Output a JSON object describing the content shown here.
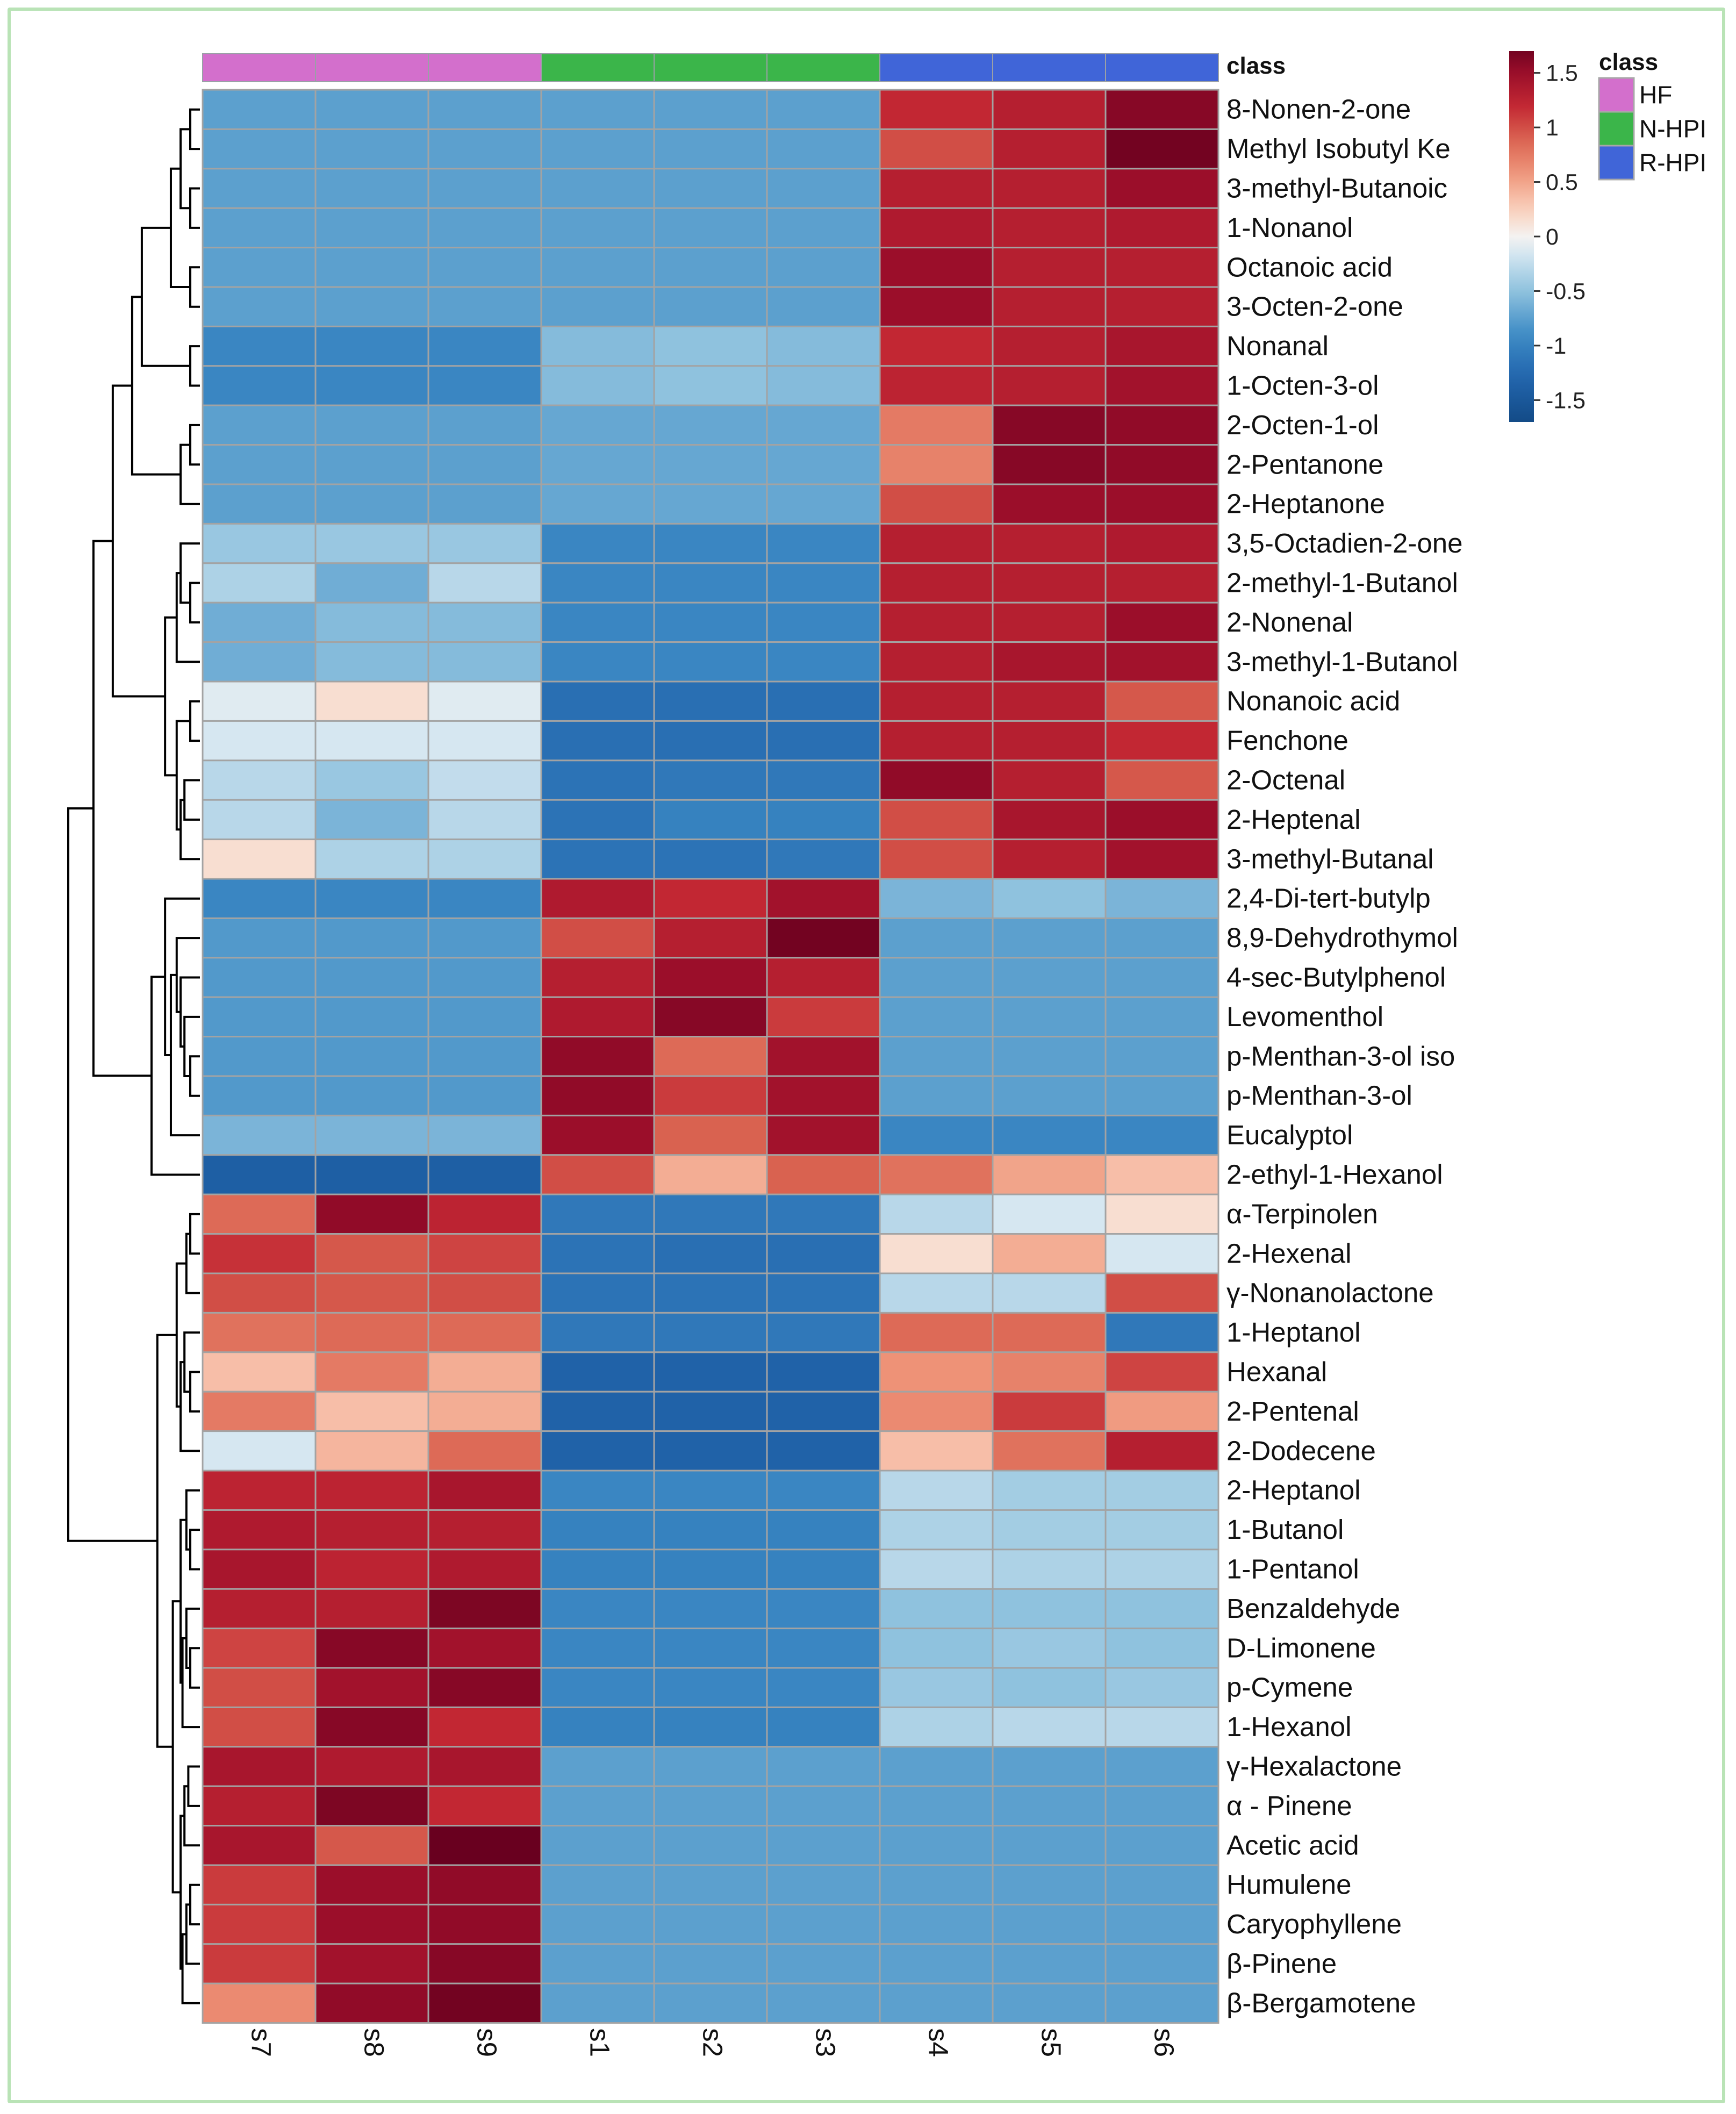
{
  "chart_data": {
    "type": "heatmap",
    "title": "",
    "samples": [
      "s7",
      "s8",
      "s9",
      "s1",
      "s2",
      "s3",
      "s4",
      "s5",
      "s6"
    ],
    "sample_classes": [
      "HF",
      "HF",
      "HF",
      "N-HPI",
      "N-HPI",
      "N-HPI",
      "R-HPI",
      "R-HPI",
      "R-HPI"
    ],
    "class_header": "class",
    "legend": {
      "title": "class",
      "entries": [
        {
          "label": "HF",
          "color": "#d36fcc"
        },
        {
          "label": "N-HPI",
          "color": "#3bb54a"
        },
        {
          "label": "R-HPI",
          "color": "#4065d8"
        }
      ]
    },
    "colorbar": {
      "range": [
        -1.7,
        1.7
      ],
      "ticks": [
        1.5,
        1,
        0.5,
        0,
        -0.5,
        -1,
        -1.5
      ],
      "tick_labels": [
        "1.5",
        "1",
        "0.5",
        "0",
        "-0.5",
        "-1",
        "-1.5"
      ],
      "colors": {
        "low": "#134b87",
        "mid": "#f4f2f1",
        "high": "#69001f"
      }
    },
    "features": [
      "8-Nonen-2-one",
      "Methyl Isobutyl Ke",
      "3-methyl-Butanoic",
      "1-Nonanol",
      "Octanoic acid",
      "3-Octen-2-one",
      "Nonanal",
      "1-Octen-3-ol",
      "2-Octen-1-ol",
      "2-Pentanone",
      "2-Heptanone",
      "3,5-Octadien-2-one",
      "2-methyl-1-Butanol",
      "2-Nonenal",
      "3-methyl-1-Butanol",
      "Nonanoic acid",
      "Fenchone",
      "2-Octenal",
      "2-Heptenal",
      "3-methyl-Butanal",
      "2,4-Di-tert-butylp",
      "8,9-Dehydrothymol",
      "4-sec-Butylphenol",
      "Levomenthol",
      "p-Menthan-3-ol iso",
      "p-Menthan-3-ol",
      "Eucalyptol",
      "2-ethyl-1-Hexanol",
      "α-Terpinolen",
      "2-Hexenal",
      "γ-Nonanolactone",
      "1-Heptanol",
      "Hexanal",
      "2-Pentenal",
      "2-Dodecene",
      "2-Heptanol",
      "1-Butanol",
      "1-Pentanol",
      "Benzaldehyde",
      "D-Limonene",
      "p-Cymene",
      "1-Hexanol",
      "γ-Hexalactone",
      "α - Pinene",
      "Acetic acid",
      "Humulene",
      "Caryophyllene",
      "β-Pinene",
      "β-Bergamotene"
    ],
    "values": [
      [
        -0.75,
        -0.75,
        -0.75,
        -0.75,
        -0.75,
        -0.75,
        1.2,
        1.3,
        1.6
      ],
      [
        -0.75,
        -0.75,
        -0.75,
        -0.75,
        -0.75,
        -0.75,
        1.0,
        1.3,
        1.7
      ],
      [
        -0.75,
        -0.75,
        -0.75,
        -0.75,
        -0.75,
        -0.75,
        1.3,
        1.3,
        1.5
      ],
      [
        -0.75,
        -0.75,
        -0.75,
        -0.75,
        -0.75,
        -0.75,
        1.35,
        1.3,
        1.35
      ],
      [
        -0.75,
        -0.75,
        -0.75,
        -0.75,
        -0.75,
        -0.75,
        1.5,
        1.3,
        1.3
      ],
      [
        -0.75,
        -0.75,
        -0.75,
        -0.75,
        -0.75,
        -0.75,
        1.5,
        1.3,
        1.3
      ],
      [
        -0.95,
        -0.95,
        -0.95,
        -0.55,
        -0.5,
        -0.55,
        1.2,
        1.3,
        1.4
      ],
      [
        -0.95,
        -0.95,
        -0.95,
        -0.55,
        -0.5,
        -0.55,
        1.25,
        1.3,
        1.45
      ],
      [
        -0.75,
        -0.75,
        -0.75,
        -0.7,
        -0.7,
        -0.7,
        0.75,
        1.6,
        1.55
      ],
      [
        -0.75,
        -0.75,
        -0.75,
        -0.7,
        -0.7,
        -0.7,
        0.7,
        1.6,
        1.55
      ],
      [
        -0.75,
        -0.75,
        -0.75,
        -0.7,
        -0.7,
        -0.7,
        1.0,
        1.5,
        1.5
      ],
      [
        -0.45,
        -0.45,
        -0.45,
        -0.95,
        -0.95,
        -0.95,
        1.3,
        1.3,
        1.35
      ],
      [
        -0.35,
        -0.65,
        -0.3,
        -0.95,
        -0.95,
        -0.95,
        1.3,
        1.3,
        1.3
      ],
      [
        -0.65,
        -0.55,
        -0.55,
        -0.95,
        -0.95,
        -0.95,
        1.3,
        1.3,
        1.5
      ],
      [
        -0.65,
        -0.55,
        -0.55,
        -0.95,
        -0.95,
        -0.95,
        1.3,
        1.4,
        1.45
      ],
      [
        -0.1,
        0.15,
        -0.1,
        -1.2,
        -1.2,
        -1.2,
        1.3,
        1.3,
        0.95
      ],
      [
        -0.15,
        -0.15,
        -0.15,
        -1.2,
        -1.2,
        -1.2,
        1.3,
        1.3,
        1.2
      ],
      [
        -0.3,
        -0.45,
        -0.25,
        -1.15,
        -1.1,
        -1.1,
        1.55,
        1.3,
        0.95
      ],
      [
        -0.3,
        -0.6,
        -0.3,
        -1.15,
        -1.0,
        -1.0,
        1.0,
        1.4,
        1.5
      ],
      [
        0.15,
        -0.35,
        -0.35,
        -1.15,
        -1.15,
        -1.1,
        1.0,
        1.3,
        1.45
      ],
      [
        -0.95,
        -0.95,
        -0.95,
        1.35,
        1.2,
        1.45,
        -0.6,
        -0.5,
        -0.6
      ],
      [
        -0.8,
        -0.8,
        -0.8,
        1.0,
        1.3,
        1.7,
        -0.75,
        -0.75,
        -0.75
      ],
      [
        -0.8,
        -0.8,
        -0.8,
        1.3,
        1.5,
        1.3,
        -0.75,
        -0.75,
        -0.75
      ],
      [
        -0.8,
        -0.8,
        -0.8,
        1.35,
        1.6,
        1.1,
        -0.75,
        -0.75,
        -0.75
      ],
      [
        -0.8,
        -0.8,
        -0.8,
        1.55,
        0.85,
        1.45,
        -0.75,
        -0.75,
        -0.75
      ],
      [
        -0.8,
        -0.8,
        -0.8,
        1.55,
        1.1,
        1.45,
        -0.75,
        -0.75,
        -0.75
      ],
      [
        -0.6,
        -0.6,
        -0.6,
        1.5,
        0.9,
        1.45,
        -0.95,
        -0.95,
        -0.95
      ],
      [
        -1.4,
        -1.4,
        -1.4,
        1.0,
        0.45,
        0.9,
        0.8,
        0.5,
        0.35
      ],
      [
        0.85,
        1.55,
        1.25,
        -1.1,
        -1.1,
        -1.1,
        -0.3,
        -0.15,
        0.15
      ],
      [
        1.15,
        0.95,
        1.05,
        -1.15,
        -1.2,
        -1.2,
        0.15,
        0.45,
        -0.15
      ],
      [
        1.0,
        0.95,
        1.0,
        -1.15,
        -1.15,
        -1.15,
        -0.3,
        -0.3,
        1.0
      ],
      [
        0.8,
        0.85,
        0.85,
        -1.1,
        -1.1,
        -1.1,
        0.85,
        0.85,
        -1.1
      ],
      [
        0.35,
        0.75,
        0.45,
        -1.35,
        -1.35,
        -1.35,
        0.6,
        0.7,
        1.05
      ],
      [
        0.75,
        0.35,
        0.45,
        -1.35,
        -1.35,
        -1.35,
        0.65,
        1.1,
        0.55
      ],
      [
        -0.15,
        0.4,
        0.85,
        -1.35,
        -1.35,
        -1.35,
        0.35,
        0.8,
        1.3
      ],
      [
        1.25,
        1.25,
        1.4,
        -0.95,
        -0.95,
        -0.95,
        -0.3,
        -0.4,
        -0.4
      ],
      [
        1.35,
        1.3,
        1.3,
        -1.0,
        -1.0,
        -1.0,
        -0.35,
        -0.4,
        -0.4
      ],
      [
        1.4,
        1.25,
        1.35,
        -1.0,
        -1.0,
        -1.0,
        -0.3,
        -0.35,
        -0.35
      ],
      [
        1.3,
        1.3,
        1.65,
        -0.95,
        -0.95,
        -0.95,
        -0.5,
        -0.5,
        -0.5
      ],
      [
        1.05,
        1.6,
        1.45,
        -0.95,
        -0.95,
        -0.95,
        -0.5,
        -0.45,
        -0.5
      ],
      [
        1.0,
        1.45,
        1.6,
        -0.95,
        -0.95,
        -0.95,
        -0.45,
        -0.5,
        -0.45
      ],
      [
        1.0,
        1.6,
        1.2,
        -1.0,
        -1.0,
        -1.0,
        -0.35,
        -0.3,
        -0.3
      ],
      [
        1.4,
        1.35,
        1.4,
        -0.75,
        -0.75,
        -0.75,
        -0.75,
        -0.75,
        -0.75
      ],
      [
        1.3,
        1.65,
        1.2,
        -0.75,
        -0.75,
        -0.75,
        -0.75,
        -0.75,
        -0.75
      ],
      [
        1.4,
        0.95,
        1.75,
        -0.75,
        -0.75,
        -0.75,
        -0.75,
        -0.75,
        -0.75
      ],
      [
        1.1,
        1.5,
        1.55,
        -0.75,
        -0.75,
        -0.75,
        -0.75,
        -0.75,
        -0.75
      ],
      [
        1.1,
        1.5,
        1.55,
        -0.75,
        -0.75,
        -0.75,
        -0.75,
        -0.75,
        -0.75
      ],
      [
        1.1,
        1.45,
        1.6,
        -0.75,
        -0.75,
        -0.75,
        -0.75,
        -0.75,
        -0.75
      ],
      [
        0.65,
        1.55,
        1.7,
        -0.75,
        -0.75,
        -0.75,
        -0.75,
        -0.75,
        -0.75
      ]
    ],
    "row_dendrogram": {
      "merges": [
        [
          -1,
          -2,
          0.05
        ],
        [
          -3,
          -4,
          0.05
        ],
        [
          -5,
          -6,
          0.05
        ],
        [
          1,
          2,
          0.1
        ],
        [
          3,
          4,
          0.15
        ],
        [
          -7,
          -8,
          0.05
        ],
        [
          5,
          6,
          0.3
        ],
        [
          -9,
          -10,
          0.05
        ],
        [
          -11,
          8,
          0.1
        ],
        [
          7,
          9,
          0.35
        ],
        [
          -13,
          -14,
          0.05
        ],
        [
          -12,
          11,
          0.1
        ],
        [
          -15,
          12,
          0.12
        ],
        [
          -16,
          -17,
          0.05
        ],
        [
          -18,
          -19,
          0.08
        ],
        [
          -20,
          15,
          0.1
        ],
        [
          14,
          16,
          0.12
        ],
        [
          13,
          17,
          0.18
        ],
        [
          10,
          18,
          0.45
        ],
        [
          -25,
          -26,
          0.05
        ],
        [
          -24,
          20,
          0.08
        ],
        [
          -23,
          21,
          0.1
        ],
        [
          -22,
          22,
          0.12
        ],
        [
          -27,
          23,
          0.15
        ],
        [
          -21,
          24,
          0.18
        ],
        [
          -28,
          25,
          0.25
        ],
        [
          19,
          26,
          0.55
        ],
        [
          -29,
          -30,
          0.05
        ],
        [
          -31,
          28,
          0.07
        ],
        [
          -33,
          -34,
          0.05
        ],
        [
          -32,
          30,
          0.08
        ],
        [
          -35,
          31,
          0.1
        ],
        [
          29,
          32,
          0.12
        ],
        [
          -37,
          -38,
          0.05
        ],
        [
          -36,
          34,
          0.07
        ],
        [
          -40,
          -41,
          0.05
        ],
        [
          -39,
          36,
          0.07
        ],
        [
          -42,
          37,
          0.09
        ],
        [
          35,
          38,
          0.1
        ],
        [
          -46,
          -47,
          0.05
        ],
        [
          -48,
          40,
          0.07
        ],
        [
          -49,
          41,
          0.09
        ],
        [
          -43,
          -44,
          0.06
        ],
        [
          43,
          -45,
          0.08
        ],
        [
          42,
          44,
          0.1
        ],
        [
          39,
          45,
          0.14
        ],
        [
          33,
          46,
          0.22
        ],
        [
          27,
          47,
          0.68
        ]
      ]
    }
  }
}
